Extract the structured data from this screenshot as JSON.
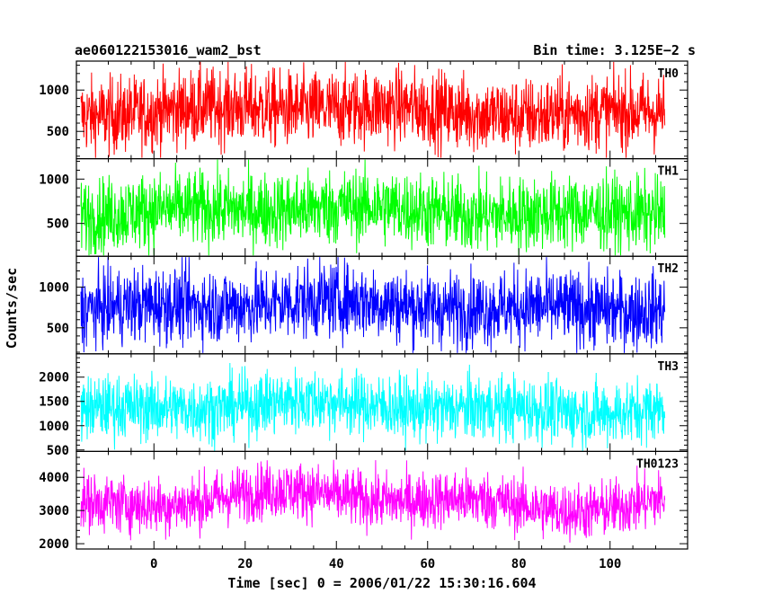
{
  "header": {
    "title": "ae060122153016_wam2_bst",
    "bin_time": "Bin time: 3.125E−2 s"
  },
  "chart_data": {
    "type": "line",
    "title": "ae060122153016_wam2_bst",
    "xlabel": "Time [sec] 0 = 2006/01/22 15:30:16.604",
    "ylabel": "Counts/sec",
    "xlim": [
      -17,
      117
    ],
    "x_data_range": [
      -16,
      112
    ],
    "x_ticks": [
      0,
      20,
      40,
      60,
      80,
      100
    ],
    "grid": false,
    "legend": "none",
    "panels": [
      {
        "name": "TH0",
        "color": "#ff0000",
        "ylim": [
          170,
          1350
        ],
        "y_ticks": [
          500,
          1000
        ],
        "baseline": 750,
        "noise": 230,
        "min": 180,
        "max": 1340
      },
      {
        "name": "TH1",
        "color": "#00ff00",
        "ylim": [
          130,
          1230
        ],
        "y_ticks": [
          500,
          1000
        ],
        "baseline": 640,
        "noise": 210,
        "min": 140,
        "max": 1220
      },
      {
        "name": "TH2",
        "color": "#0000ff",
        "ylim": [
          180,
          1380
        ],
        "y_ticks": [
          500,
          1000
        ],
        "baseline": 770,
        "noise": 230,
        "min": 190,
        "max": 1370
      },
      {
        "name": "TH3",
        "color": "#00ffff",
        "ylim": [
          470,
          2480
        ],
        "y_ticks": [
          500,
          1000,
          1500,
          2000
        ],
        "baseline": 1380,
        "noise": 330,
        "min": 480,
        "max": 2470
      },
      {
        "name": "TH0123",
        "color": "#ff00ff",
        "ylim": [
          1840,
          4780
        ],
        "y_ticks": [
          2000,
          3000,
          4000
        ],
        "baseline": 3300,
        "noise": 430,
        "min": 1850,
        "max": 4770
      }
    ]
  }
}
